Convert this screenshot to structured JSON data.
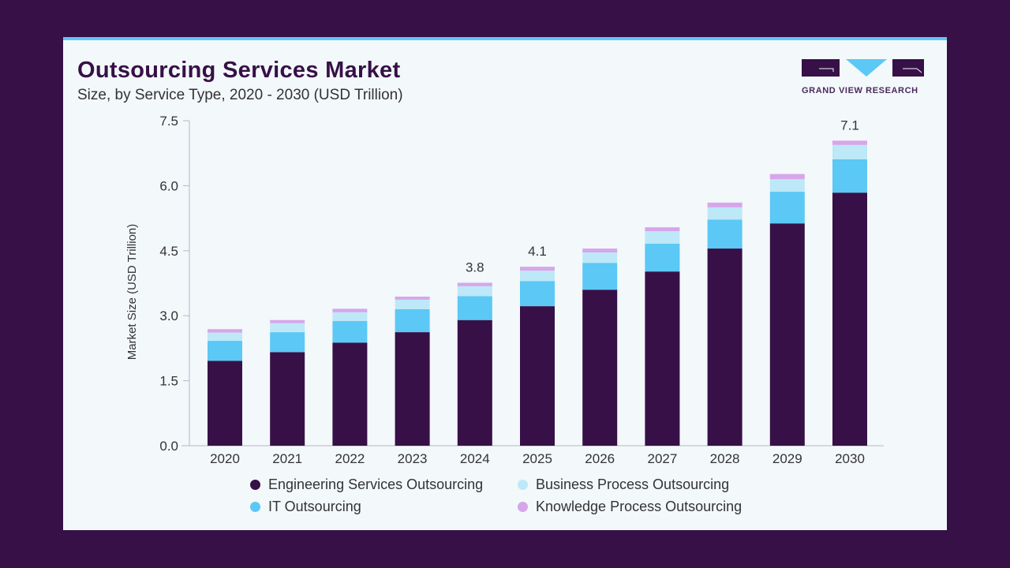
{
  "header": {
    "title": "Outsourcing Services Market",
    "subtitle": "Size, by Service Type, 2020 - 2030 (USD Trillion)",
    "logo_text": "GRAND VIEW RESEARCH"
  },
  "colors": {
    "background": "#371047",
    "panel": "#f3f8fb",
    "accent": "#5bc8f5"
  },
  "chart_data": {
    "type": "bar",
    "stacked": true,
    "title": "Outsourcing Services Market",
    "subtitle": "Size, by Service Type, 2020 - 2030 (USD Trillion)",
    "xlabel": "",
    "ylabel": "Market Size (USD Trillion)",
    "ylim": [
      0,
      7.5
    ],
    "yticks": [
      "0.0",
      "1.5",
      "3.0",
      "4.5",
      "6.0",
      "7.5"
    ],
    "grid": false,
    "legend_position": "bottom",
    "categories": [
      "2020",
      "2021",
      "2022",
      "2023",
      "2024",
      "2025",
      "2026",
      "2027",
      "2028",
      "2029",
      "2030"
    ],
    "series": [
      {
        "name": "Engineering Services Outsourcing",
        "color": "#371047",
        "values": [
          1.96,
          2.16,
          2.38,
          2.62,
          2.9,
          3.22,
          3.6,
          4.02,
          4.55,
          5.13,
          5.84
        ]
      },
      {
        "name": "IT Outsourcing",
        "color": "#5bc8f5",
        "values": [
          0.46,
          0.46,
          0.5,
          0.53,
          0.55,
          0.58,
          0.62,
          0.64,
          0.67,
          0.73,
          0.77
        ]
      },
      {
        "name": "Business Process Outsourcing",
        "color": "#bde8f8",
        "values": [
          0.19,
          0.21,
          0.2,
          0.22,
          0.23,
          0.24,
          0.24,
          0.29,
          0.28,
          0.29,
          0.33
        ]
      },
      {
        "name": "Knowledge Process Outsourcing",
        "color": "#d6a6ea",
        "values": [
          0.08,
          0.07,
          0.08,
          0.07,
          0.08,
          0.09,
          0.09,
          0.09,
          0.11,
          0.12,
          0.1
        ]
      }
    ],
    "data_labels": [
      {
        "category": "2024",
        "text": "3.8"
      },
      {
        "category": "2025",
        "text": "4.1"
      },
      {
        "category": "2030",
        "text": "7.1"
      }
    ]
  },
  "legend": {
    "items": [
      {
        "label": "Engineering Services Outsourcing",
        "color": "#371047"
      },
      {
        "label": "Business Process Outsourcing",
        "color": "#bde8f8"
      },
      {
        "label": "IT Outsourcing",
        "color": "#5bc8f5"
      },
      {
        "label": "Knowledge Process Outsourcing",
        "color": "#d6a6ea"
      }
    ]
  }
}
